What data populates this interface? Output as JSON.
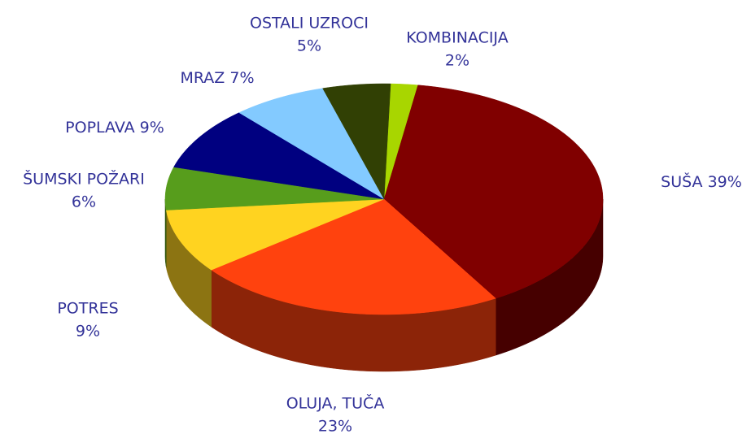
{
  "chart_data": {
    "type": "pie",
    "categories": [
      "KOMBINACIJA",
      "SUŠA",
      "OLUJA, TUČA",
      "POTRES",
      "ŠUMSKI POŽARI",
      "POPLAVA",
      "MRAZ",
      "OSTALI UZROCI"
    ],
    "values": [
      2,
      39,
      23,
      9,
      6,
      9,
      7,
      5
    ],
    "value_labels": [
      "2%",
      "39%",
      "23%",
      "9%",
      "6%",
      "9%",
      "7%",
      "5%"
    ],
    "colors": [
      "#a8d600",
      "#800000",
      "#ff420e",
      "#ffd320",
      "#579d1c",
      "#000080",
      "#83caff",
      "#314004"
    ]
  }
}
